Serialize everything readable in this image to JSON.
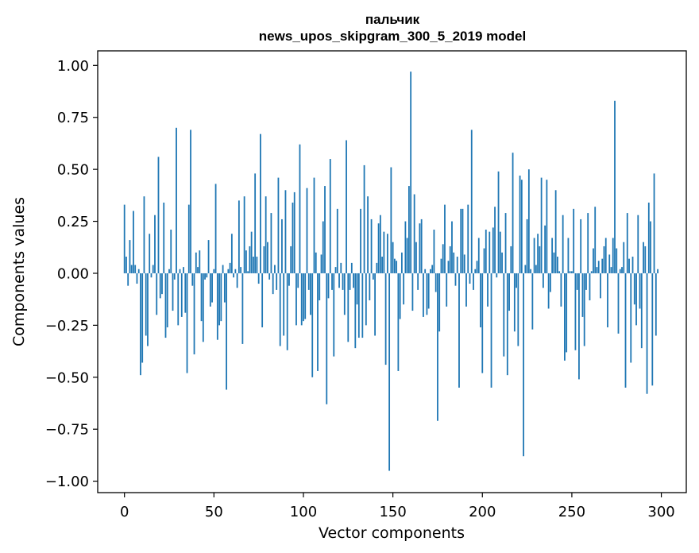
{
  "chart_data": {
    "type": "bar",
    "title": "пальчик",
    "subtitle": "news_upos_skipgram_300_5_2019 model",
    "xlabel": "Vector components",
    "ylabel": "Components values",
    "xlim": [
      -14.95,
      313.95
    ],
    "ylim": [
      -1.055,
      1.07
    ],
    "xticks": [
      0,
      50,
      100,
      150,
      200,
      250,
      300
    ],
    "yticks": [
      1.0,
      0.75,
      0.5,
      0.25,
      0.0,
      -0.25,
      -0.5,
      -0.75,
      -1.0
    ],
    "ytick_labels": [
      "1.00",
      "0.75",
      "0.50",
      "0.25",
      "0.00",
      "−0.25",
      "−0.50",
      "−0.75",
      "−1.00"
    ],
    "bar_color": "#1f77b4",
    "x": "0..299",
    "values": [
      0.33,
      0.08,
      -0.06,
      0.16,
      0.04,
      0.3,
      0.04,
      -0.05,
      0.02,
      -0.49,
      -0.43,
      0.37,
      -0.3,
      -0.35,
      0.19,
      -0.02,
      0.04,
      0.28,
      -0.2,
      0.56,
      -0.12,
      -0.1,
      0.34,
      -0.31,
      -0.26,
      0.02,
      0.21,
      -0.18,
      -0.03,
      0.7,
      -0.25,
      0.02,
      -0.21,
      0.03,
      -0.19,
      -0.48,
      0.33,
      0.69,
      -0.06,
      -0.39,
      0.1,
      0.03,
      0.11,
      -0.23,
      -0.33,
      -0.03,
      -0.02,
      0.16,
      -0.16,
      -0.14,
      0.02,
      0.43,
      -0.32,
      -0.25,
      -0.23,
      0.04,
      -0.14,
      -0.56,
      0.02,
      0.05,
      0.19,
      -0.02,
      0.02,
      -0.07,
      0.35,
      0.03,
      -0.34,
      0.37,
      0.11,
      0.01,
      0.13,
      0.2,
      0.08,
      0.48,
      0.08,
      -0.05,
      0.67,
      -0.26,
      0.13,
      0.37,
      0.15,
      -0.03,
      0.29,
      -0.1,
      0.04,
      -0.08,
      0.46,
      -0.35,
      0.26,
      -0.3,
      0.4,
      -0.37,
      -0.06,
      0.13,
      0.34,
      0.39,
      -0.25,
      -0.07,
      0.62,
      -0.25,
      -0.23,
      -0.22,
      0.41,
      -0.08,
      -0.2,
      -0.5,
      0.46,
      0.1,
      -0.47,
      -0.13,
      0.09,
      0.25,
      0.42,
      -0.63,
      -0.12,
      0.55,
      -0.08,
      -0.4,
      0.03,
      0.31,
      -0.07,
      0.05,
      -0.08,
      -0.2,
      0.64,
      -0.33,
      -0.08,
      0.05,
      -0.07,
      -0.36,
      -0.15,
      -0.31,
      0.31,
      -0.31,
      0.52,
      -0.25,
      0.37,
      -0.13,
      0.26,
      -0.03,
      -0.3,
      0.05,
      0.24,
      0.28,
      0.08,
      0.2,
      -0.44,
      0.19,
      -0.95,
      0.51,
      0.15,
      0.07,
      0.06,
      -0.47,
      -0.22,
      0.1,
      -0.15,
      0.25,
      0.17,
      0.42,
      0.97,
      -0.18,
      0.38,
      0.15,
      -0.08,
      0.24,
      0.26,
      -0.21,
      0.02,
      -0.2,
      -0.17,
      0.02,
      0.04,
      0.21,
      -0.09,
      -0.71,
      -0.28,
      0.07,
      0.14,
      0.33,
      -0.16,
      0.06,
      0.13,
      0.25,
      0.1,
      -0.06,
      0.08,
      -0.55,
      0.31,
      0.31,
      0.09,
      -0.16,
      0.33,
      -0.05,
      0.69,
      -0.08,
      0.02,
      0.06,
      0.17,
      -0.26,
      -0.48,
      0.12,
      0.21,
      -0.16,
      0.2,
      -0.55,
      0.22,
      0.32,
      -0.02,
      0.49,
      0.2,
      0.1,
      -0.4,
      0.29,
      -0.49,
      -0.18,
      0.13,
      0.58,
      -0.28,
      -0.07,
      -0.35,
      0.47,
      0.45,
      -0.88,
      0.04,
      0.26,
      0.5,
      0.02,
      -0.27,
      0.17,
      0.04,
      0.19,
      0.13,
      0.46,
      -0.07,
      0.23,
      0.45,
      -0.17,
      -0.09,
      0.17,
      0.1,
      0.4,
      0.08,
      0.01,
      -0.16,
      0.28,
      -0.42,
      -0.38,
      0.17,
      0.01,
      0.01,
      0.31,
      -0.37,
      -0.08,
      -0.51,
      0.26,
      -0.21,
      -0.35,
      -0.08,
      0.29,
      -0.13,
      0.01,
      0.12,
      0.32,
      0.03,
      0.06,
      -0.12,
      0.07,
      0.13,
      0.17,
      -0.26,
      0.09,
      0.03,
      0.17,
      0.83,
      0.12,
      -0.29,
      0.02,
      0.03,
      0.15,
      -0.55,
      0.29,
      0.07,
      -0.43,
      0.08,
      -0.15,
      -0.25,
      0.28,
      -0.17,
      -0.36,
      0.15,
      0.13,
      -0.58,
      0.34,
      0.25,
      -0.54,
      0.48,
      -0.3,
      0.02
    ]
  }
}
